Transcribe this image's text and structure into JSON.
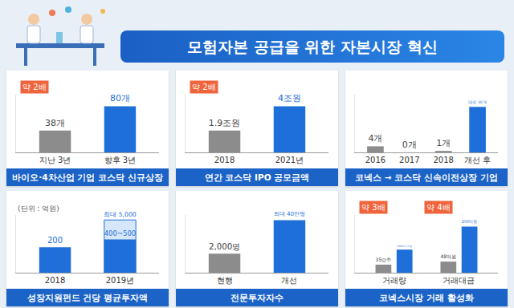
{
  "title": "모험자본 공급을 위한 자본시장 혁신",
  "chart_data": [
    {
      "type": "bar",
      "title": "바이오·4차산업 기업 코스닥 신규상장",
      "categories": [
        "지난 3년",
        "향후 3년"
      ],
      "values": [
        38,
        80
      ],
      "value_labels": [
        "38개",
        "80개"
      ],
      "colors": [
        "#8c8c8c",
        "#1e6fd9"
      ],
      "annotations": [
        {
          "x": 0,
          "text": "약 2배"
        }
      ],
      "ylim": [
        0,
        100
      ],
      "data_labels": true,
      "tick_labels": "x",
      "grid": false
    },
    {
      "type": "bar",
      "title": "연간 코스닥 IPO 공모금액",
      "categories": [
        "2018",
        "2021년"
      ],
      "values": [
        1.9,
        4
      ],
      "value_labels": [
        "1.9조원",
        "4조원"
      ],
      "colors": [
        "#8c8c8c",
        "#1e6fd9"
      ],
      "annotations": [
        {
          "x": 0,
          "text": "약 2배"
        }
      ],
      "ylim": [
        0,
        5
      ],
      "data_labels": true,
      "tick_labels": "x",
      "grid": false
    },
    {
      "type": "bar",
      "title": "코넥스 → 코스닥 신속이전상장 기업",
      "categories": [
        "2016",
        "2017",
        "2018",
        "개선 후"
      ],
      "values": [
        4,
        0,
        1,
        30
      ],
      "value_labels": [
        "4개",
        "0개",
        "1개",
        "대상 30개"
      ],
      "colors": [
        "#8c8c8c",
        "#8c8c8c",
        "#8c8c8c",
        "#1e6fd9"
      ],
      "ylim": [
        0,
        38
      ],
      "data_labels": true,
      "tick_labels": "x",
      "grid": false
    },
    {
      "type": "bar",
      "title": "성장지원펀드 건당 평균투자액",
      "subtitle": "(단위 : 억원)",
      "categories": [
        "2018",
        "2019년"
      ],
      "log": "y",
      "ylim": [
        10,
        9000
      ],
      "series": [
        {
          "color": "#d6e6fb",
          "values": [
            null,
            5000
          ],
          "value_labels": [
            null,
            "최대 5,000"
          ]
        },
        {
          "color": "#1e6fd9",
          "values": [
            200,
            500
          ],
          "value_labels": [
            "200",
            "400~500"
          ]
        }
      ],
      "data_labels": true,
      "tick_labels": "x",
      "grid": false
    },
    {
      "type": "bar",
      "title": "전문투자자수",
      "categories": [
        "현행",
        "개선"
      ],
      "values": [
        2000,
        400000
      ],
      "value_labels": [
        "2,000명",
        "최대 40만명"
      ],
      "colors": [
        "#8c8c8c",
        "#1e6fd9"
      ],
      "log": "y",
      "ylim": [
        100,
        900000
      ],
      "data_labels": true,
      "tick_labels": "x",
      "grid": false
    },
    {
      "type": "bar",
      "title": "코넥스시장 거래 활성화",
      "categories": [
        "거래량",
        "거래대금"
      ],
      "ylim": [
        0,
        250
      ],
      "series": [
        {
          "color": "#8c8c8c",
          "values": [
            35,
            48
          ],
          "value_labels": [
            "35만주",
            "48억원"
          ]
        },
        {
          "color": "#1e6fd9",
          "values": [
            100,
            200
          ],
          "value_labels": [
            "100만주 이상",
            "200억원"
          ]
        }
      ],
      "annotations": [
        {
          "x": 0,
          "text": "약 3배"
        },
        {
          "x": 1,
          "text": "약 4배"
        }
      ],
      "data_labels": true,
      "tick_labels": "x",
      "grid": false
    }
  ]
}
